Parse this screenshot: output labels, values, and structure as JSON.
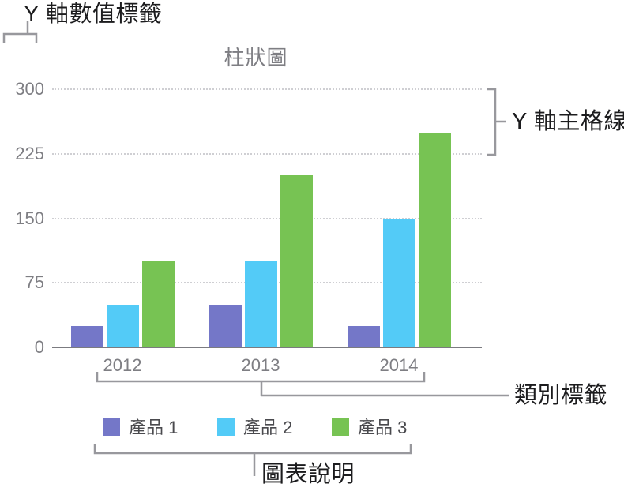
{
  "figure_type": "annotated chart illustration",
  "callouts": {
    "y_axis_value_labels": "Y 軸數值標籤",
    "y_axis_major_gridlines": "Y 軸主格線",
    "category_labels": "類別標籤",
    "chart_legend": "圖表說明"
  },
  "colors": {
    "series1": "#7477c8",
    "series2": "#53cbf7",
    "series3": "#77c353",
    "gridline": "#cfcfd3",
    "axis_line": "#7b7b80",
    "chart_text_gray": "#7e7e83",
    "legend_text": "#4a4a4e",
    "callout_text": "#1c1c1e",
    "callout_line": "#98989d"
  },
  "chart_data": {
    "type": "bar",
    "title": "柱狀圖",
    "categories": [
      "2012",
      "2013",
      "2014"
    ],
    "series": [
      {
        "name": "產品 1",
        "color": "#7477c8",
        "values": [
          25,
          50,
          25
        ]
      },
      {
        "name": "產品 2",
        "color": "#53cbf7",
        "values": [
          50,
          100,
          150
        ]
      },
      {
        "name": "產品 3",
        "color": "#77c353",
        "values": [
          100,
          200,
          250
        ]
      }
    ],
    "xlabel": "",
    "ylabel": "",
    "ylim": [
      0,
      300
    ],
    "yticks": [
      0,
      75,
      150,
      225,
      300
    ],
    "grid": "horizontal dotted major gridlines",
    "legend_position": "bottom"
  }
}
